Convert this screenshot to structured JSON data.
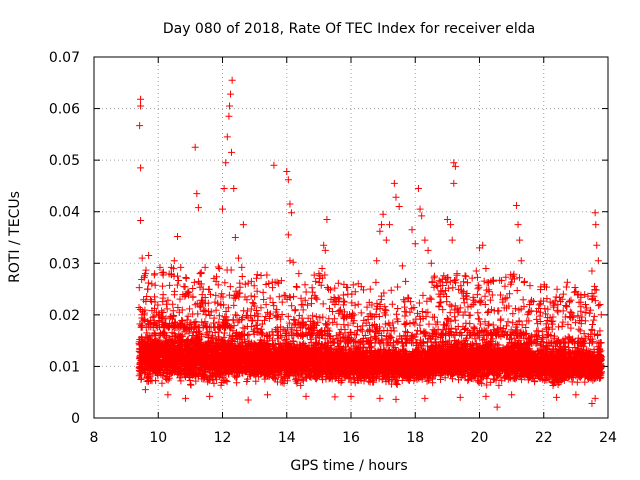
{
  "chart_data": {
    "type": "scatter",
    "title": "Day 080 of 2018, Rate Of TEC Index for receiver elda",
    "xlabel": "GPS time / hours",
    "ylabel": "ROTI / TECUs",
    "xlim": [
      8,
      24
    ],
    "ylim": [
      0,
      0.07
    ],
    "xticks": [
      "8",
      "10",
      "12",
      "14",
      "16",
      "18",
      "20",
      "22",
      "24"
    ],
    "yticks": [
      "0",
      "0.01",
      "0.02",
      "0.03",
      "0.04",
      "0.05",
      "0.06",
      "0.07"
    ],
    "grid": true,
    "marker": "plus",
    "color": "#ff0000",
    "series": [
      {
        "name": "ROTI",
        "points": [
          [
            9.45,
            0.0618
          ],
          [
            9.45,
            0.0605
          ],
          [
            9.42,
            0.0567
          ],
          [
            9.45,
            0.0485
          ],
          [
            9.45,
            0.0383
          ],
          [
            9.5,
            0.031
          ],
          [
            9.6,
            0.028
          ],
          [
            9.7,
            0.0315
          ],
          [
            9.8,
            0.026
          ],
          [
            9.9,
            0.0225
          ],
          [
            10.5,
            0.0305
          ],
          [
            10.6,
            0.0352
          ],
          [
            10.7,
            0.0292
          ],
          [
            10.8,
            0.0255
          ],
          [
            10.6,
            0.0275
          ],
          [
            11.15,
            0.0525
          ],
          [
            11.2,
            0.0435
          ],
          [
            11.25,
            0.0408
          ],
          [
            11.3,
            0.028
          ],
          [
            11.4,
            0.025
          ],
          [
            11.8,
            0.0265
          ],
          [
            11.9,
            0.029
          ],
          [
            12.0,
            0.0405
          ],
          [
            12.05,
            0.0445
          ],
          [
            12.1,
            0.0495
          ],
          [
            12.15,
            0.0545
          ],
          [
            12.2,
            0.0585
          ],
          [
            12.25,
            0.0628
          ],
          [
            12.3,
            0.0655
          ],
          [
            12.22,
            0.0605
          ],
          [
            12.28,
            0.0515
          ],
          [
            12.35,
            0.0445
          ],
          [
            12.4,
            0.035
          ],
          [
            12.5,
            0.031
          ],
          [
            12.6,
            0.0292
          ],
          [
            12.65,
            0.0375
          ],
          [
            12.9,
            0.0265
          ],
          [
            13.0,
            0.0235
          ],
          [
            13.1,
            0.0202
          ],
          [
            13.6,
            0.049
          ],
          [
            14.0,
            0.0478
          ],
          [
            14.05,
            0.0462
          ],
          [
            14.1,
            0.0415
          ],
          [
            14.15,
            0.0398
          ],
          [
            14.05,
            0.0355
          ],
          [
            14.1,
            0.0305
          ],
          [
            14.2,
            0.0302
          ],
          [
            14.3,
            0.0255
          ],
          [
            14.5,
            0.022
          ],
          [
            14.9,
            0.0265
          ],
          [
            15.0,
            0.028
          ],
          [
            15.1,
            0.029
          ],
          [
            15.15,
            0.0335
          ],
          [
            15.2,
            0.0325
          ],
          [
            15.25,
            0.0385
          ],
          [
            15.3,
            0.025
          ],
          [
            15.5,
            0.022
          ],
          [
            15.8,
            0.0225
          ],
          [
            15.9,
            0.024
          ],
          [
            16.5,
            0.0215
          ],
          [
            16.6,
            0.025
          ],
          [
            16.8,
            0.0305
          ],
          [
            16.9,
            0.0362
          ],
          [
            16.95,
            0.0375
          ],
          [
            17.0,
            0.0395
          ],
          [
            17.1,
            0.0345
          ],
          [
            17.2,
            0.0375
          ],
          [
            17.35,
            0.0455
          ],
          [
            17.4,
            0.0428
          ],
          [
            17.5,
            0.041
          ],
          [
            17.6,
            0.0295
          ],
          [
            17.7,
            0.0265
          ],
          [
            17.9,
            0.0365
          ],
          [
            18.0,
            0.0338
          ],
          [
            18.1,
            0.0445
          ],
          [
            18.15,
            0.0405
          ],
          [
            18.2,
            0.0392
          ],
          [
            18.3,
            0.0345
          ],
          [
            18.4,
            0.0325
          ],
          [
            18.5,
            0.03
          ],
          [
            18.6,
            0.0275
          ],
          [
            18.7,
            0.0255
          ],
          [
            18.8,
            0.0225
          ],
          [
            19.0,
            0.0385
          ],
          [
            19.1,
            0.0375
          ],
          [
            19.15,
            0.0345
          ],
          [
            19.2,
            0.0495
          ],
          [
            19.25,
            0.0488
          ],
          [
            19.2,
            0.0455
          ],
          [
            19.3,
            0.028
          ],
          [
            19.5,
            0.0245
          ],
          [
            19.8,
            0.022
          ],
          [
            19.9,
            0.0285
          ],
          [
            20.0,
            0.033
          ],
          [
            20.1,
            0.0335
          ],
          [
            20.2,
            0.029
          ],
          [
            20.3,
            0.0245
          ],
          [
            20.6,
            0.0208
          ],
          [
            20.8,
            0.0232
          ],
          [
            21.05,
            0.0275
          ],
          [
            21.15,
            0.0412
          ],
          [
            21.2,
            0.0375
          ],
          [
            21.25,
            0.0345
          ],
          [
            21.3,
            0.0305
          ],
          [
            21.4,
            0.0265
          ],
          [
            21.6,
            0.0225
          ],
          [
            21.9,
            0.0205
          ],
          [
            22.2,
            0.0225
          ],
          [
            22.3,
            0.0215
          ],
          [
            22.8,
            0.0225
          ],
          [
            23.0,
            0.0245
          ],
          [
            23.3,
            0.022
          ],
          [
            23.5,
            0.0285
          ],
          [
            23.6,
            0.0398
          ],
          [
            23.62,
            0.0375
          ],
          [
            23.65,
            0.0335
          ],
          [
            23.7,
            0.0305
          ],
          [
            23.75,
            0.022
          ],
          [
            10.3,
            0.0045
          ],
          [
            10.85,
            0.0038
          ],
          [
            11.6,
            0.0042
          ],
          [
            12.8,
            0.0035
          ],
          [
            13.4,
            0.0045
          ],
          [
            14.6,
            0.0042
          ],
          [
            15.5,
            0.0041
          ],
          [
            16.0,
            0.0042
          ],
          [
            16.9,
            0.0038
          ],
          [
            17.4,
            0.0036
          ],
          [
            18.3,
            0.0038
          ],
          [
            19.4,
            0.004
          ],
          [
            20.2,
            0.0042
          ],
          [
            20.55,
            0.0021
          ],
          [
            21.0,
            0.0045
          ],
          [
            22.4,
            0.004
          ],
          [
            23.0,
            0.0045
          ],
          [
            23.5,
            0.0028
          ],
          [
            23.6,
            0.0038
          ],
          [
            9.6,
            0.0055
          ]
        ],
        "dense_bands": [
          {
            "x": [
              9.4,
              12.4
            ],
            "ylow": 0.0055,
            "yhigh": 0.0175
          },
          {
            "x": [
              12.4,
              15.3
            ],
            "ylow": 0.006,
            "yhigh": 0.016
          },
          {
            "x": [
              15.3,
              18.5
            ],
            "ylow": 0.006,
            "yhigh": 0.0145
          },
          {
            "x": [
              18.5,
              21.5
            ],
            "ylow": 0.006,
            "yhigh": 0.016
          },
          {
            "x": [
              21.5,
              23.8
            ],
            "ylow": 0.006,
            "yhigh": 0.0145
          }
        ]
      }
    ]
  }
}
